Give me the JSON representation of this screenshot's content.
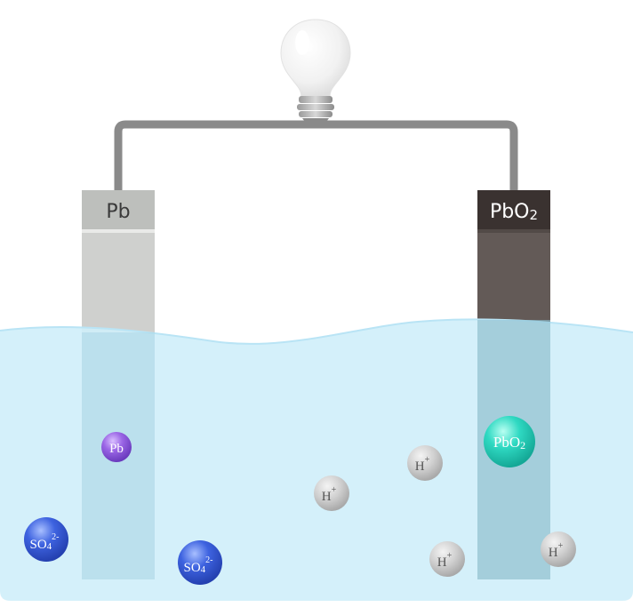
{
  "electrodes": {
    "left": {
      "label": "Pb",
      "cap_color": "#bdbfbc",
      "body_color": "#cfd0ce"
    },
    "right": {
      "label": "PbO",
      "label_sub": "2",
      "cap_color": "#3a3230",
      "body_color": "#635a57"
    }
  },
  "circuit": {
    "wire_color": "#8a8a8a",
    "bulb": "light-bulb-icon"
  },
  "electrolyte": {
    "color": "#cfeefa"
  },
  "particles": {
    "pb": {
      "label": "Pb",
      "color": "#9b66e6"
    },
    "pbo2": {
      "label": "PbO",
      "sub": "2",
      "color": "#2fd9c2"
    },
    "sulfate": [
      {
        "base": "SO",
        "sub": "4",
        "sup": "2-"
      },
      {
        "base": "SO",
        "sub": "4",
        "sup": "2-"
      }
    ],
    "hydrogen": [
      {
        "base": "H",
        "sup": "+"
      },
      {
        "base": "H",
        "sup": "+"
      },
      {
        "base": "H",
        "sup": "+"
      },
      {
        "base": "H",
        "sup": "+"
      }
    ],
    "sulfate_color": "#3e63e0",
    "hydrogen_color": "#c8c8c8"
  }
}
